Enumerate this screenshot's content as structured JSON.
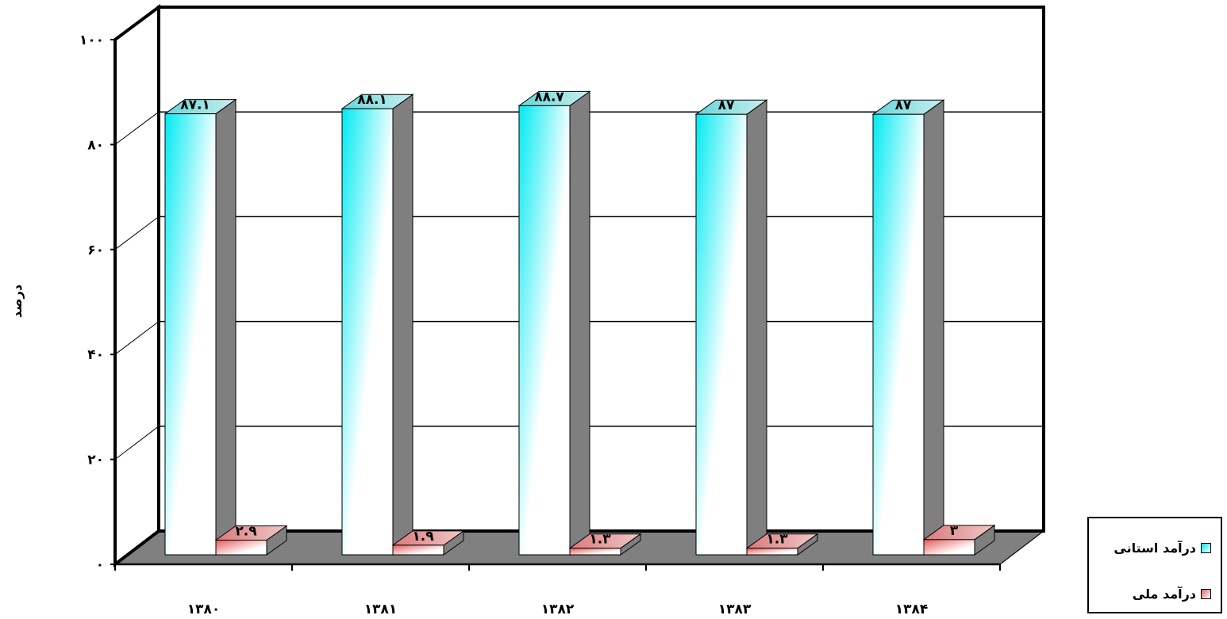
{
  "chart_data": {
    "type": "bar",
    "ylabel": "درصد",
    "ylim": [
      0,
      100
    ],
    "yticks": [
      "۰",
      "۲۰",
      "۴۰",
      "۶۰",
      "۸۰",
      "۱۰۰"
    ],
    "categories": [
      "۱۳۸۰",
      "۱۳۸۱",
      "۱۳۸۲",
      "۱۳۸۳",
      "۱۳۸۴"
    ],
    "series": [
      {
        "name": "درآمد استانی",
        "values": [
          87.1,
          88.1,
          88.7,
          87,
          87
        ],
        "labels": [
          "۸۷.۱",
          "۸۸.۱",
          "۸۸.۷",
          "۸۷",
          "۸۷"
        ],
        "color": "#00e5ee"
      },
      {
        "name": "درآمد ملی",
        "values": [
          2.9,
          1.9,
          1.3,
          1.3,
          3
        ],
        "labels": [
          "۲.۹",
          "۱.۹",
          "۱.۳",
          "۱.۳",
          "۳"
        ],
        "color": "#e06060"
      }
    ],
    "grid": true,
    "legend": "bottom-right",
    "style": "3d"
  }
}
